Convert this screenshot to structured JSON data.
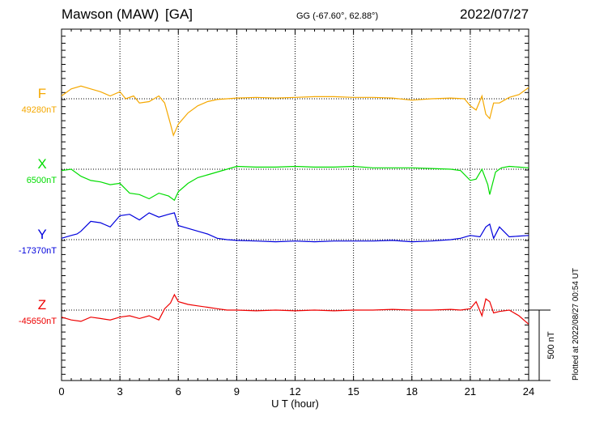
{
  "header": {
    "station": "Mawson (MAW)",
    "network": "[GA]",
    "coords": "GG (-67.60°,  62.88°)",
    "date": "2022/07/27"
  },
  "plotted_note": "Plotted at 2022/08/27 00:54 UT",
  "chart_data": {
    "type": "line",
    "xlabel": "U T (hour)",
    "xlim": [
      0,
      24
    ],
    "xticks": [
      "0",
      "3",
      "6",
      "9",
      "12",
      "15",
      "18",
      "21",
      "24"
    ],
    "scale_bar_label": "500 nT",
    "series": [
      {
        "name": "F",
        "baseline_label": "49280nT",
        "baseline": 49280,
        "color": "#f5a800",
        "x": [
          0,
          0.5,
          1,
          1.5,
          2,
          2.5,
          3,
          3.3,
          3.7,
          4,
          4.5,
          5,
          5.3,
          5.6,
          5.75,
          6,
          6.5,
          7,
          7.5,
          8,
          8.5,
          9,
          10,
          11,
          12,
          13,
          14,
          15,
          16,
          17,
          18,
          19,
          20,
          20.7,
          21,
          21.3,
          21.6,
          21.8,
          22,
          22.2,
          22.5,
          23,
          23.5,
          24
        ],
        "y": [
          49300,
          49350,
          49370,
          49350,
          49330,
          49300,
          49330,
          49280,
          49300,
          49250,
          49260,
          49300,
          49250,
          49100,
          49020,
          49100,
          49180,
          49230,
          49260,
          49275,
          49280,
          49285,
          49290,
          49285,
          49290,
          49295,
          49295,
          49290,
          49290,
          49285,
          49270,
          49280,
          49285,
          49280,
          49230,
          49200,
          49300,
          49170,
          49140,
          49250,
          49250,
          49290,
          49310,
          49360
        ]
      },
      {
        "name": "X",
        "baseline_label": "6500nT",
        "baseline": 6500,
        "color": "#00dd00",
        "x": [
          0,
          0.5,
          1,
          1.5,
          2,
          2.5,
          3,
          3.5,
          4,
          4.5,
          5,
          5.5,
          5.8,
          6,
          6.5,
          7,
          7.5,
          8,
          8.5,
          9,
          10,
          11,
          12,
          13,
          14,
          15,
          16,
          17,
          18,
          19,
          20,
          20.5,
          21,
          21.3,
          21.6,
          21.9,
          22,
          22.3,
          22.6,
          23,
          23.5,
          24
        ],
        "y": [
          6490,
          6500,
          6450,
          6420,
          6410,
          6390,
          6400,
          6330,
          6320,
          6290,
          6330,
          6310,
          6280,
          6340,
          6400,
          6440,
          6460,
          6480,
          6500,
          6520,
          6515,
          6515,
          6520,
          6515,
          6515,
          6520,
          6510,
          6510,
          6510,
          6505,
          6500,
          6490,
          6420,
          6430,
          6500,
          6390,
          6320,
          6480,
          6510,
          6520,
          6515,
          6510
        ]
      },
      {
        "name": "Y",
        "baseline_label": "-17370nT",
        "baseline": -17370,
        "color": "#0000dd",
        "x": [
          0,
          0.5,
          0.8,
          1,
          1.5,
          2,
          2.5,
          3,
          3.5,
          4,
          4.5,
          5,
          5.5,
          5.8,
          6,
          6.5,
          7,
          7.5,
          8,
          8.5,
          9,
          10,
          11,
          12,
          13,
          14,
          15,
          16,
          17,
          18,
          19,
          20,
          20.5,
          21,
          21.5,
          21.8,
          22,
          22.2,
          22.5,
          23,
          23.5,
          24
        ],
        "y": [
          -17360,
          -17340,
          -17330,
          -17310,
          -17240,
          -17250,
          -17280,
          -17200,
          -17190,
          -17230,
          -17180,
          -17210,
          -17190,
          -17180,
          -17270,
          -17290,
          -17310,
          -17330,
          -17360,
          -17370,
          -17375,
          -17380,
          -17385,
          -17380,
          -17385,
          -17380,
          -17380,
          -17380,
          -17375,
          -17385,
          -17380,
          -17370,
          -17360,
          -17340,
          -17350,
          -17280,
          -17260,
          -17360,
          -17280,
          -17350,
          -17345,
          -17340
        ]
      },
      {
        "name": "Z",
        "baseline_label": "-45650nT",
        "baseline": -45650,
        "color": "#ee0000",
        "x": [
          0,
          0.5,
          1,
          1.5,
          2,
          2.5,
          3,
          3.5,
          4,
          4.5,
          5,
          5.3,
          5.6,
          5.8,
          6,
          6.5,
          7,
          7.5,
          8,
          8.5,
          9,
          10,
          11,
          12,
          13,
          14,
          15,
          16,
          17,
          18,
          19,
          20,
          20.5,
          21,
          21.3,
          21.6,
          21.8,
          22,
          22.2,
          22.5,
          23,
          23.5,
          24
        ],
        "y": [
          -45700,
          -45720,
          -45730,
          -45700,
          -45710,
          -45720,
          -45700,
          -45690,
          -45710,
          -45690,
          -45720,
          -45640,
          -45600,
          -45540,
          -45590,
          -45610,
          -45620,
          -45630,
          -45640,
          -45650,
          -45650,
          -45655,
          -45650,
          -45655,
          -45650,
          -45655,
          -45650,
          -45650,
          -45645,
          -45650,
          -45650,
          -45645,
          -45650,
          -45640,
          -45590,
          -45690,
          -45570,
          -45590,
          -45670,
          -45660,
          -45650,
          -45690,
          -45750
        ]
      }
    ]
  }
}
